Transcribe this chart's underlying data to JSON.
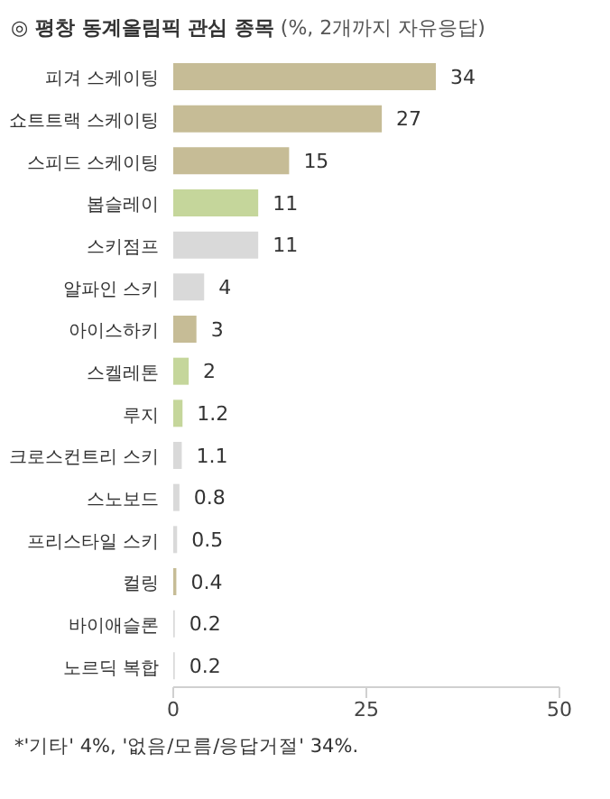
{
  "chart_data": {
    "type": "bar",
    "orientation": "horizontal",
    "title": "◎ 평창 동계올림픽 관심 종목",
    "subtitle": "(%, 2개까지 자유응답)",
    "categories": [
      "피겨 스케이팅",
      "쇼트트랙 스케이팅",
      "스피드 스케이팅",
      "봅슬레이",
      "스키점프",
      "알파인 스키",
      "아이스하키",
      "스켈레톤",
      "루지",
      "크로스컨트리 스키",
      "스노보드",
      "프리스타일 스키",
      "컬링",
      "바이애슬론",
      "노르딕 복합"
    ],
    "values": [
      34,
      27,
      15,
      11,
      11,
      4,
      3,
      2,
      1.2,
      1.1,
      0.8,
      0.5,
      0.4,
      0.2,
      0.2
    ],
    "colors": [
      "#c6bc96",
      "#c6bc96",
      "#c6bc96",
      "#c5d69b",
      "#d9d9d9",
      "#d9d9d9",
      "#c6bc96",
      "#c5d69b",
      "#c5d69b",
      "#d9d9d9",
      "#d9d9d9",
      "#d9d9d9",
      "#c6bc96",
      "#d9d9d9",
      "#d9d9d9"
    ],
    "xlim": [
      0,
      50
    ],
    "xticks": [
      0,
      25,
      50
    ],
    "data_labels": true,
    "annotations": [
      "*'기타' 4%, '없음/모름/응답거절' 34%."
    ]
  }
}
